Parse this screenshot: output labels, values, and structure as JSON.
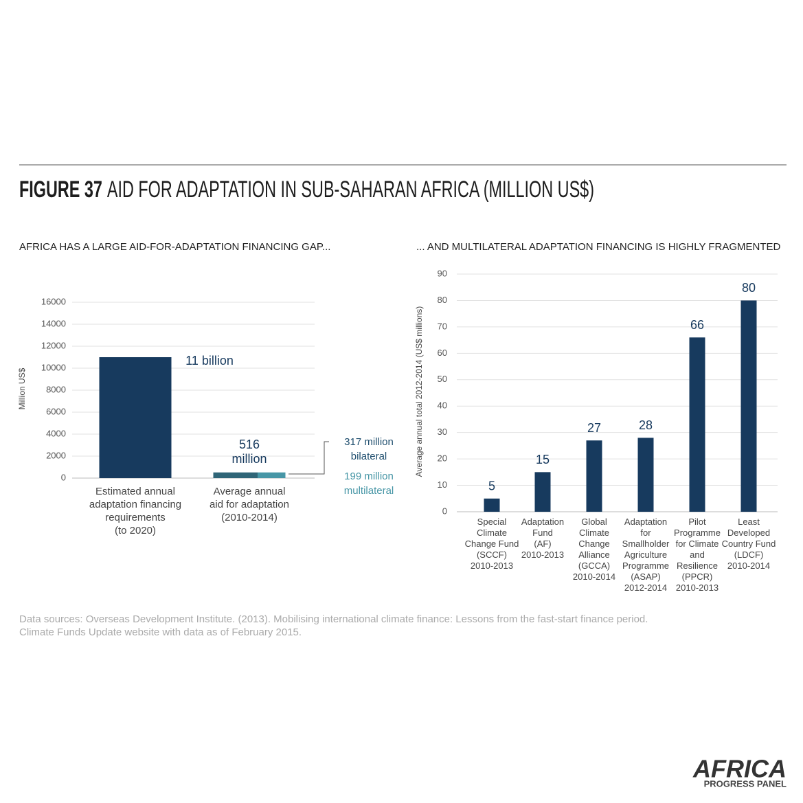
{
  "title_bold": "FIGURE 37",
  "title": "AID FOR ADAPTATION IN SUB-SAHARAN AFRICA (MILLION US$)",
  "chart_data": [
    {
      "type": "bar",
      "subtitle": "AFRICA HAS A LARGE AID-FOR-ADAPTATION FINANCING GAP...",
      "ylabel": "Million US$",
      "categories": [
        "Estimated annual\nadaptation financing\nrequirements\n(to 2020)",
        "Average annual\naid for adaptation\n(2010-2014)"
      ],
      "values": [
        11000,
        516
      ],
      "value_labels": [
        "11 billion",
        "516\nmillion"
      ],
      "color": "#173a5e",
      "components": [
        {
          "label": "317 million\nbilateral",
          "value": 317,
          "color": "#2f6577"
        },
        {
          "label": "199 million\nmultilateral",
          "value": 199,
          "color": "#4796a6"
        }
      ],
      "ylim": [
        0,
        16000
      ],
      "yticks": [
        0,
        2000,
        4000,
        6000,
        8000,
        10000,
        12000,
        14000,
        16000
      ],
      "grid": true
    },
    {
      "type": "bar",
      "subtitle": "... AND MULTILATERAL ADAPTATION FINANCING IS HIGHLY FRAGMENTED",
      "ylabel": "Average annual total 2012-2014 (US$ millions)",
      "categories": [
        "Special\nClimate\nChange Fund\n(SCCF)\n2010-2013",
        "Adaptation\nFund\n(AF)\n2010-2013",
        "Global\nClimate\nChange\nAlliance\n(GCCA)\n2010-2014",
        "Adaptation\nfor\nSmallholder\nAgriculture\nProgramme\n(ASAP)\n2012-2014",
        "Pilot\nProgramme\nfor Climate\nand\nResilience\n(PPCR)\n2010-2013",
        "Least\nDeveloped\nCountry Fund\n(LDCF)\n2010-2014"
      ],
      "values": [
        5,
        15,
        27,
        28,
        66,
        80
      ],
      "color": "#173a5e",
      "ylim": [
        0,
        90
      ],
      "yticks": [
        0,
        10,
        20,
        30,
        40,
        50,
        60,
        70,
        80,
        90
      ],
      "grid": true
    }
  ],
  "source": "Data sources: Overseas Development Institute. (2013). Mobilising international climate finance: Lessons from the fast-start finance period.\nClimate Funds Update website with data as of February 2015.",
  "logo": {
    "main": "AFRICA",
    "sub": "PROGRESS PANEL"
  }
}
